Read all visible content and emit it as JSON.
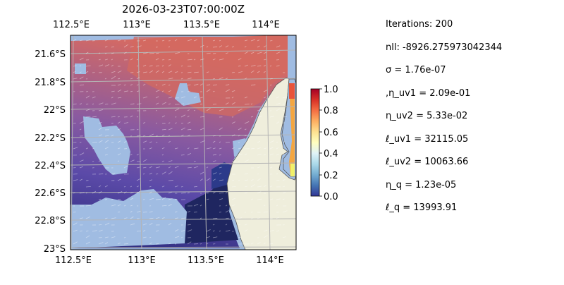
{
  "title": "2026-03-23T07:00:00Z",
  "map": {
    "lon_ticks": [
      "112.5°E",
      "113°E",
      "113.5°E",
      "114°E"
    ],
    "lat_ticks": [
      "21.6°S",
      "21.8°S",
      "22°S",
      "22.2°S",
      "22.4°S",
      "22.6°S",
      "22.8°S",
      "23°S"
    ],
    "colors": {
      "ocean": "#a0bce2",
      "land": "#efeedc",
      "field_low": "#21205c",
      "field_mid": "#6b4ba4",
      "field_high": "#d8645e",
      "grid": "#b4b4b4"
    }
  },
  "colorbar": {
    "ticks": [
      "0.0",
      "0.2",
      "0.4",
      "0.6",
      "0.8",
      "1.0"
    ],
    "colormap": "RdYlBu_r"
  },
  "stats": [
    "Iterations: 200",
    "nll: -8926.275973042344",
    "σ = 1.76e-07",
    ",η_uv1 = 2.09e-01",
    "η_uv2 = 5.33e-02",
    "ℓ_uv1 = 32115.05",
    "ℓ_uv2 = 10063.66",
    "η_q = 1.23e-05",
    "ℓ_q = 13993.91"
  ]
}
